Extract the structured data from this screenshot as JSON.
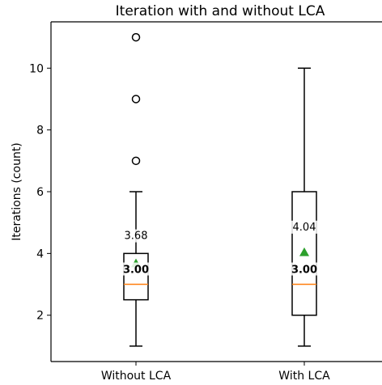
{
  "chart_data": {
    "type": "box",
    "title": "Iteration with and without LCA",
    "xlabel": "",
    "ylabel": "Iterations (count)",
    "ylim": [
      0.5,
      11.5
    ],
    "yticks": [
      2,
      4,
      6,
      8,
      10
    ],
    "grid": false,
    "categories": [
      "Without LCA",
      "With LCA"
    ],
    "boxes": [
      {
        "label": "Without LCA",
        "whisker_low": 1,
        "q1": 2.5,
        "median": 3,
        "q3": 4,
        "whisker_high": 6,
        "mean": 3.68,
        "outliers": [
          7,
          9,
          11
        ],
        "mean_label": "3.68",
        "median_label": "3.00"
      },
      {
        "label": "With LCA",
        "whisker_low": 1,
        "q1": 2,
        "median": 3,
        "q3": 6,
        "whisker_high": 10,
        "mean": 4.04,
        "outliers": [],
        "mean_label": "4.04",
        "median_label": "3.00"
      }
    ],
    "colors": {
      "median_line": "#ff7f0e",
      "mean_marker": "#2ca02c",
      "box_edge": "#000000"
    }
  }
}
